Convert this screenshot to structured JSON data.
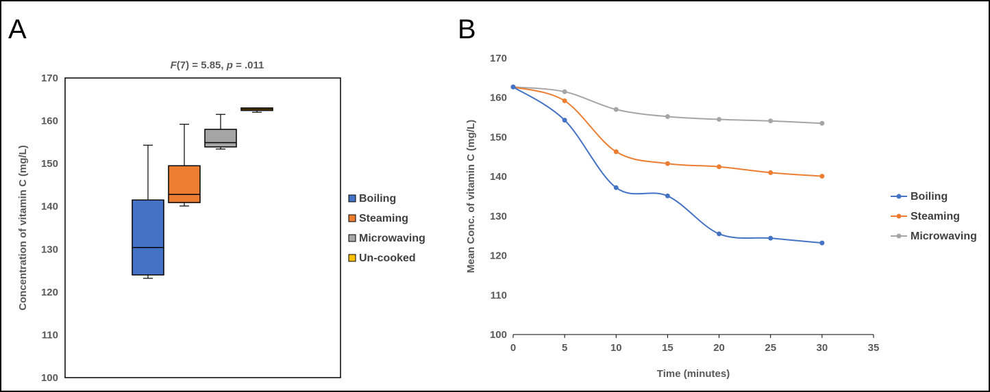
{
  "panels": {
    "a_label": "A",
    "b_label": "B"
  },
  "chart_data": [
    {
      "type": "box",
      "stat_prefix": "F",
      "stat_text": "(7) = 5.85, ",
      "stat_p_label": "p",
      "stat_p_text": " = .011",
      "ylabel": "Concentration of vitamin C (mg/L)",
      "ylim": [
        100,
        170
      ],
      "yticks": [
        100,
        110,
        120,
        130,
        140,
        150,
        160,
        170
      ],
      "legend_position": "right",
      "grid": false,
      "series": [
        {
          "name": "Boiling",
          "color": "#4472c4",
          "min": 123.2,
          "q1": 124.0,
          "median": 130.4,
          "q3": 141.5,
          "max": 154.3
        },
        {
          "name": "Steaming",
          "color": "#ed7d31",
          "min": 140.1,
          "q1": 140.9,
          "median": 142.8,
          "q3": 149.5,
          "max": 159.2
        },
        {
          "name": "Microwaving",
          "color": "#a5a5a5",
          "min": 153.4,
          "q1": 153.9,
          "median": 154.9,
          "q3": 158.0,
          "max": 161.5
        },
        {
          "name": "Un-cooked",
          "color": "#ffc000",
          "min": 162.0,
          "q1": 162.4,
          "median": 162.7,
          "q3": 163.0,
          "max": 163.0
        }
      ]
    },
    {
      "type": "line",
      "xlabel": "Time (minutes)",
      "ylabel": "Mean Conc. of vitamin C (mg/L)",
      "xlim": [
        0,
        35
      ],
      "ylim": [
        100,
        170
      ],
      "xticks": [
        0,
        5,
        10,
        15,
        20,
        25,
        30,
        35
      ],
      "yticks": [
        100,
        110,
        120,
        130,
        140,
        150,
        160,
        170
      ],
      "legend_position": "right",
      "grid": false,
      "smooth": true,
      "x": [
        0,
        5,
        10,
        15,
        20,
        25,
        30
      ],
      "series": [
        {
          "name": "Boiling",
          "color": "#4472c4",
          "values": [
            162.7,
            154.3,
            137.2,
            135.1,
            125.5,
            124.4,
            123.2
          ]
        },
        {
          "name": "Steaming",
          "color": "#ed7d31",
          "values": [
            162.7,
            159.2,
            146.3,
            143.3,
            142.5,
            141.0,
            140.1
          ]
        },
        {
          "name": "Microwaving",
          "color": "#a5a5a5",
          "values": [
            162.7,
            161.5,
            157.0,
            155.2,
            154.5,
            154.1,
            153.5
          ]
        }
      ]
    }
  ]
}
